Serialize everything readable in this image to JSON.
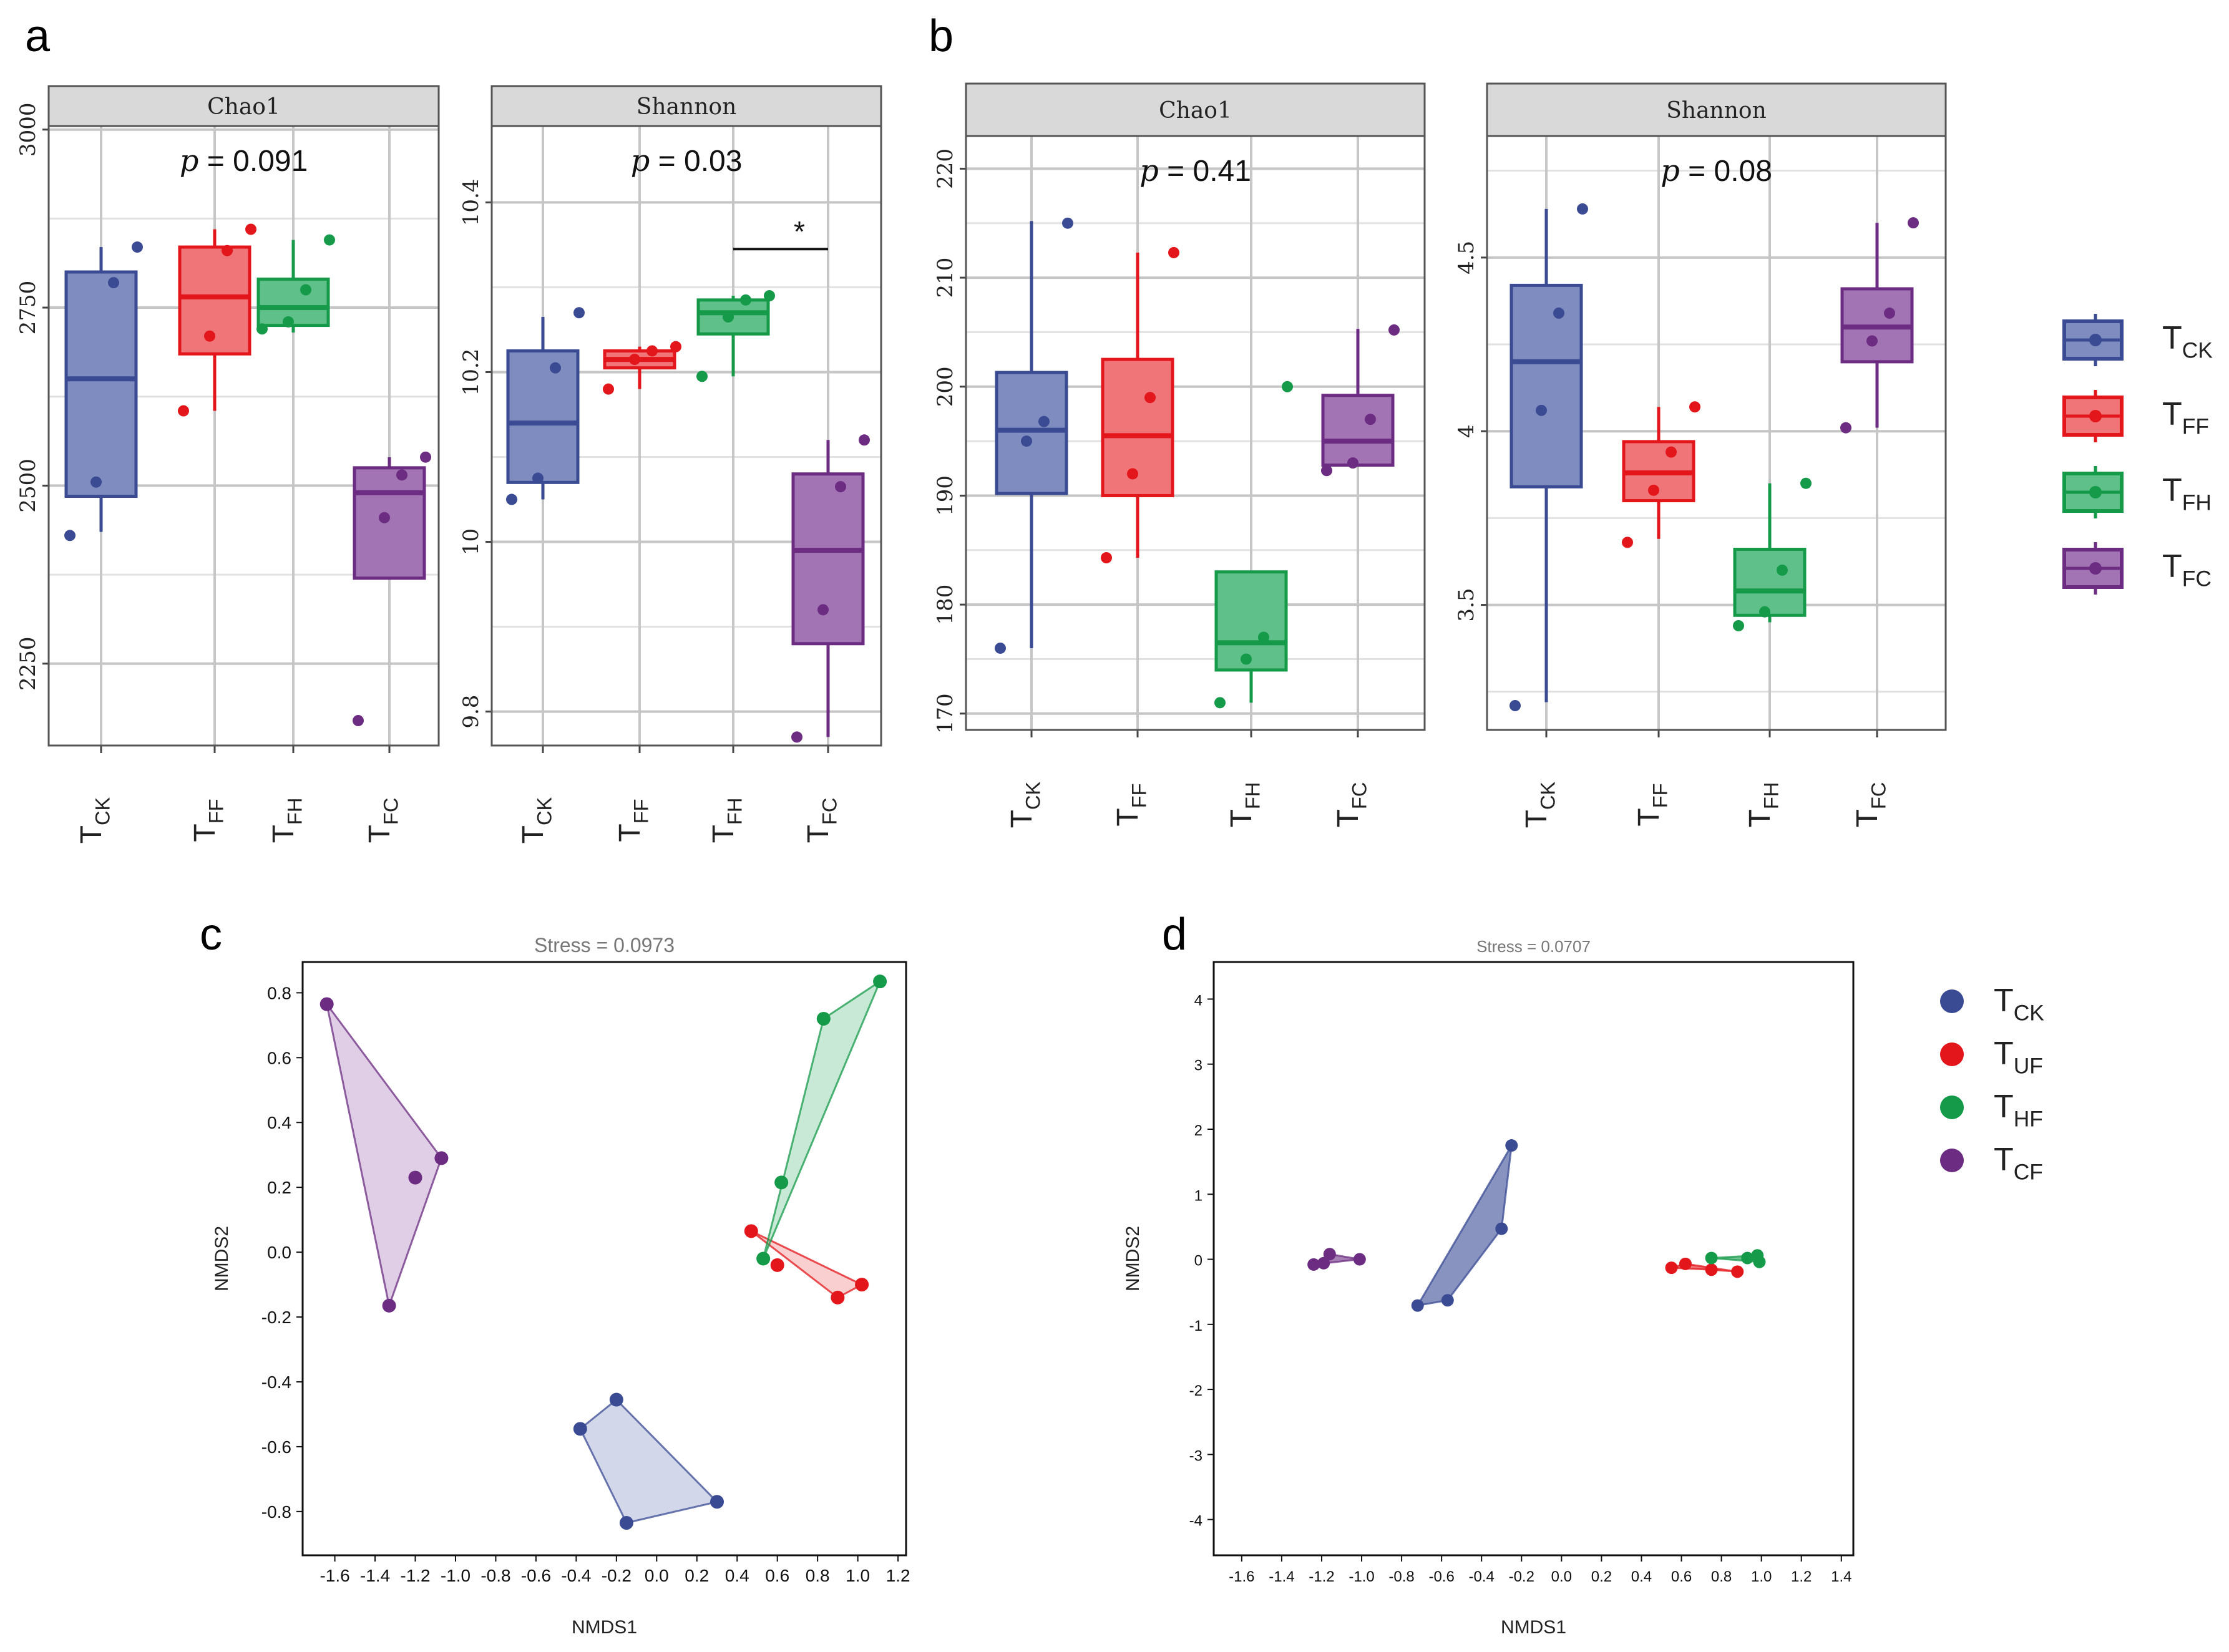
{
  "panel_labels": {
    "a": "a",
    "b": "b",
    "c": "c",
    "d": "d"
  },
  "groups_box": [
    {
      "main": "T",
      "sub": "CK",
      "color": "#3a4b94",
      "fill": "#7f8cc0"
    },
    {
      "main": "T",
      "sub": "FF",
      "color": "#e3161b",
      "fill": "#f07579"
    },
    {
      "main": "T",
      "sub": "FH",
      "color": "#159a4a",
      "fill": "#5fc08a"
    },
    {
      "main": "T",
      "sub": "FC",
      "color": "#6b2c82",
      "fill": "#a274b4"
    }
  ],
  "legend_box": [
    {
      "main": "T",
      "sub": "CK",
      "color": "#3a4b94",
      "fill": "#7f8cc0"
    },
    {
      "main": "T",
      "sub": "FF",
      "color": "#e3161b",
      "fill": "#f07579"
    },
    {
      "main": "T",
      "sub": "FH",
      "color": "#159a4a",
      "fill": "#5fc08a"
    },
    {
      "main": "T",
      "sub": "FC",
      "color": "#6b2c82",
      "fill": "#a274b4"
    }
  ],
  "legend_nmds": [
    {
      "main": "T",
      "sub": "CK",
      "color": "#3a4b94"
    },
    {
      "main": "T",
      "sub": "UF",
      "color": "#e3161b"
    },
    {
      "main": "T",
      "sub": "HF",
      "color": "#159a4a"
    },
    {
      "main": "T",
      "sub": "CF",
      "color": "#6b2c82"
    }
  ],
  "chart_data": [
    {
      "id": "a1",
      "type": "box",
      "panel": "a",
      "title": "Chao1",
      "ptext_pre": "p",
      "ptext_val": " = 0.091",
      "ylim": [
        2135,
        3005
      ],
      "yticks": [
        2250,
        2500,
        2750,
        3000
      ],
      "groups": [
        {
          "name": "TCK",
          "q1": 2485,
          "median": 2650,
          "q3": 2800,
          "wlo": 2435,
          "whi": 2835,
          "points": [
            2430,
            2505,
            2785,
            2835
          ]
        },
        {
          "name": "TFF",
          "q1": 2685,
          "median": 2765,
          "q3": 2835,
          "wlo": 2605,
          "whi": 2860,
          "points": [
            2605,
            2710,
            2830,
            2860
          ]
        },
        {
          "name": "TFH",
          "q1": 2725,
          "median": 2750,
          "q3": 2790,
          "wlo": 2715,
          "whi": 2845,
          "points": [
            2720,
            2730,
            2775,
            2845
          ]
        },
        {
          "name": "TFC",
          "q1": 2370,
          "median": 2490,
          "q3": 2525,
          "wlo": 2370,
          "whi": 2540,
          "points": [
            2170,
            2455,
            2515,
            2540
          ]
        }
      ]
    },
    {
      "id": "a2",
      "type": "box",
      "panel": "a",
      "title": "Shannon",
      "ptext_pre": "p",
      "ptext_val": " = 0.03",
      "ylim": [
        9.76,
        10.49
      ],
      "yticks": [
        9.8,
        10.0,
        10.2,
        10.4
      ],
      "sig": {
        "from": 2,
        "to": 3,
        "label": "*",
        "y": 10.345
      },
      "groups": [
        {
          "name": "TCK",
          "q1": 10.07,
          "median": 10.14,
          "q3": 10.225,
          "wlo": 10.05,
          "whi": 10.265,
          "points": [
            10.05,
            10.075,
            10.205,
            10.27
          ]
        },
        {
          "name": "TFF",
          "q1": 10.205,
          "median": 10.215,
          "q3": 10.225,
          "wlo": 10.18,
          "whi": 10.23,
          "points": [
            10.18,
            10.215,
            10.225,
            10.23
          ]
        },
        {
          "name": "TFH",
          "q1": 10.245,
          "median": 10.27,
          "q3": 10.285,
          "wlo": 10.195,
          "whi": 10.29,
          "points": [
            10.195,
            10.265,
            10.285,
            10.29
          ]
        },
        {
          "name": "TFC",
          "q1": 9.88,
          "median": 9.99,
          "q3": 10.08,
          "wlo": 9.77,
          "whi": 10.12,
          "points": [
            9.77,
            9.92,
            10.065,
            10.12
          ]
        }
      ]
    },
    {
      "id": "b1",
      "type": "box",
      "panel": "b",
      "title": "Chao1",
      "ptext_pre": "p",
      "ptext_val": " = 0.41",
      "ylim": [
        168.5,
        223
      ],
      "yticks": [
        170,
        180,
        190,
        200,
        210,
        220
      ],
      "groups": [
        {
          "name": "TCK",
          "q1": 190.2,
          "median": 196,
          "q3": 201.3,
          "wlo": 176,
          "whi": 215.2,
          "points": [
            176,
            195,
            196.8,
            215
          ]
        },
        {
          "name": "TFF",
          "q1": 190,
          "median": 195.5,
          "q3": 202.5,
          "wlo": 184.3,
          "whi": 212.3,
          "points": [
            184.3,
            192,
            199,
            212.3
          ]
        },
        {
          "name": "TFH",
          "q1": 174,
          "median": 176.5,
          "q3": 183,
          "wlo": 171,
          "whi": 183,
          "points": [
            171,
            175,
            177,
            200
          ]
        },
        {
          "name": "TFC",
          "q1": 192.8,
          "median": 195,
          "q3": 199.2,
          "wlo": 192.8,
          "whi": 205.3,
          "points": [
            192.3,
            193,
            197,
            205.2
          ]
        }
      ]
    },
    {
      "id": "b2",
      "type": "box",
      "panel": "b",
      "title": "Shannon",
      "ptext_pre": "p",
      "ptext_val": " = 0.08",
      "ylim": [
        3.14,
        4.85
      ],
      "yticks": [
        3.5,
        4.0,
        4.5
      ],
      "groups": [
        {
          "name": "TCK",
          "q1": 3.84,
          "median": 4.2,
          "q3": 4.42,
          "wlo": 3.22,
          "whi": 4.64,
          "points": [
            3.21,
            4.06,
            4.34,
            4.64
          ]
        },
        {
          "name": "TFF",
          "q1": 3.8,
          "median": 3.88,
          "q3": 3.97,
          "wlo": 3.69,
          "whi": 4.07,
          "points": [
            3.68,
            3.83,
            3.94,
            4.07
          ]
        },
        {
          "name": "TFH",
          "q1": 3.47,
          "median": 3.54,
          "q3": 3.66,
          "wlo": 3.45,
          "whi": 3.85,
          "points": [
            3.44,
            3.48,
            3.6,
            3.85
          ]
        },
        {
          "name": "TFC",
          "q1": 4.2,
          "median": 4.3,
          "q3": 4.41,
          "wlo": 4.01,
          "whi": 4.6,
          "points": [
            4.01,
            4.26,
            4.34,
            4.6
          ]
        }
      ]
    },
    {
      "id": "c",
      "type": "scatter",
      "panel": "c",
      "title": "Stress = 0.0973",
      "xlabel": "NMDS1",
      "ylabel": "NMDS2",
      "xlim": [
        -1.76,
        1.24
      ],
      "ylim": [
        -0.935,
        0.895
      ],
      "xticks": [
        -1.6,
        -1.4,
        -1.2,
        -1.0,
        -0.8,
        -0.6,
        -0.4,
        -0.2,
        0.0,
        0.2,
        0.4,
        0.6,
        0.8,
        1.0,
        1.2
      ],
      "yticks": [
        -0.8,
        -0.6,
        -0.4,
        -0.2,
        0.0,
        0.2,
        0.4,
        0.6,
        0.8
      ],
      "series": [
        {
          "name": "TCK",
          "points": [
            [
              -0.38,
              -0.545
            ],
            [
              -0.2,
              -0.455
            ],
            [
              -0.15,
              -0.835
            ],
            [
              0.3,
              -0.77
            ]
          ],
          "hull": [
            [
              -0.38,
              -0.545
            ],
            [
              -0.2,
              -0.455
            ],
            [
              0.3,
              -0.77
            ],
            [
              -0.15,
              -0.835
            ]
          ]
        },
        {
          "name": "TUF",
          "points": [
            [
              0.47,
              0.065
            ],
            [
              0.6,
              -0.04
            ],
            [
              0.9,
              -0.14
            ],
            [
              1.02,
              -0.1
            ]
          ],
          "hull": [
            [
              0.47,
              0.065
            ],
            [
              1.02,
              -0.1
            ],
            [
              0.9,
              -0.14
            ]
          ]
        },
        {
          "name": "THF",
          "points": [
            [
              0.53,
              -0.02
            ],
            [
              0.62,
              0.215
            ],
            [
              0.83,
              0.72
            ],
            [
              1.11,
              0.835
            ]
          ],
          "hull": [
            [
              0.53,
              -0.02
            ],
            [
              1.11,
              0.835
            ],
            [
              0.83,
              0.72
            ]
          ]
        },
        {
          "name": "TCF",
          "points": [
            [
              -1.64,
              0.765
            ],
            [
              -1.2,
              0.23
            ],
            [
              -1.07,
              0.29
            ],
            [
              -1.33,
              -0.165
            ]
          ],
          "hull": [
            [
              -1.64,
              0.765
            ],
            [
              -1.07,
              0.29
            ],
            [
              -1.33,
              -0.165
            ]
          ]
        }
      ]
    },
    {
      "id": "d",
      "type": "scatter",
      "panel": "d",
      "title": "Stress = 0.0707",
      "xlabel": "NMDS1",
      "ylabel": "NMDS2",
      "xlim": [
        -1.74,
        1.46
      ],
      "ylim": [
        -4.55,
        4.57
      ],
      "xticks": [
        -1.6,
        -1.4,
        -1.2,
        -1.0,
        -0.8,
        -0.6,
        -0.4,
        -0.2,
        0.0,
        0.2,
        0.4,
        0.6,
        0.8,
        1.0,
        1.2,
        1.4
      ],
      "yticks": [
        -4,
        -3,
        -2,
        -1,
        0,
        1,
        2,
        3,
        4
      ],
      "series": [
        {
          "name": "TCK",
          "points": [
            [
              -0.72,
              -0.71
            ],
            [
              -0.57,
              -0.63
            ],
            [
              -0.3,
              0.47
            ],
            [
              -0.25,
              1.75
            ]
          ],
          "hull": [
            [
              -0.72,
              -0.71
            ],
            [
              -0.25,
              1.75
            ],
            [
              -0.3,
              0.47
            ],
            [
              -0.57,
              -0.63
            ]
          ]
        },
        {
          "name": "TUF",
          "points": [
            [
              0.55,
              -0.13
            ],
            [
              0.62,
              -0.07
            ],
            [
              0.75,
              -0.16
            ],
            [
              0.88,
              -0.19
            ]
          ],
          "hull": [
            [
              0.55,
              -0.13
            ],
            [
              0.62,
              -0.07
            ],
            [
              0.88,
              -0.19
            ],
            [
              0.75,
              -0.16
            ]
          ]
        },
        {
          "name": "THF",
          "points": [
            [
              0.75,
              0.02
            ],
            [
              0.93,
              0.02
            ],
            [
              0.98,
              0.06
            ],
            [
              0.99,
              -0.04
            ]
          ],
          "hull": [
            [
              0.75,
              0.02
            ],
            [
              0.98,
              0.06
            ],
            [
              0.99,
              -0.04
            ]
          ]
        },
        {
          "name": "TCF",
          "points": [
            [
              -1.24,
              -0.08
            ],
            [
              -1.19,
              -0.06
            ],
            [
              -1.16,
              0.08
            ],
            [
              -1.01,
              0.0
            ]
          ],
          "hull": [
            [
              -1.24,
              -0.08
            ],
            [
              -1.16,
              0.08
            ],
            [
              -1.01,
              0.0
            ]
          ]
        }
      ]
    }
  ]
}
